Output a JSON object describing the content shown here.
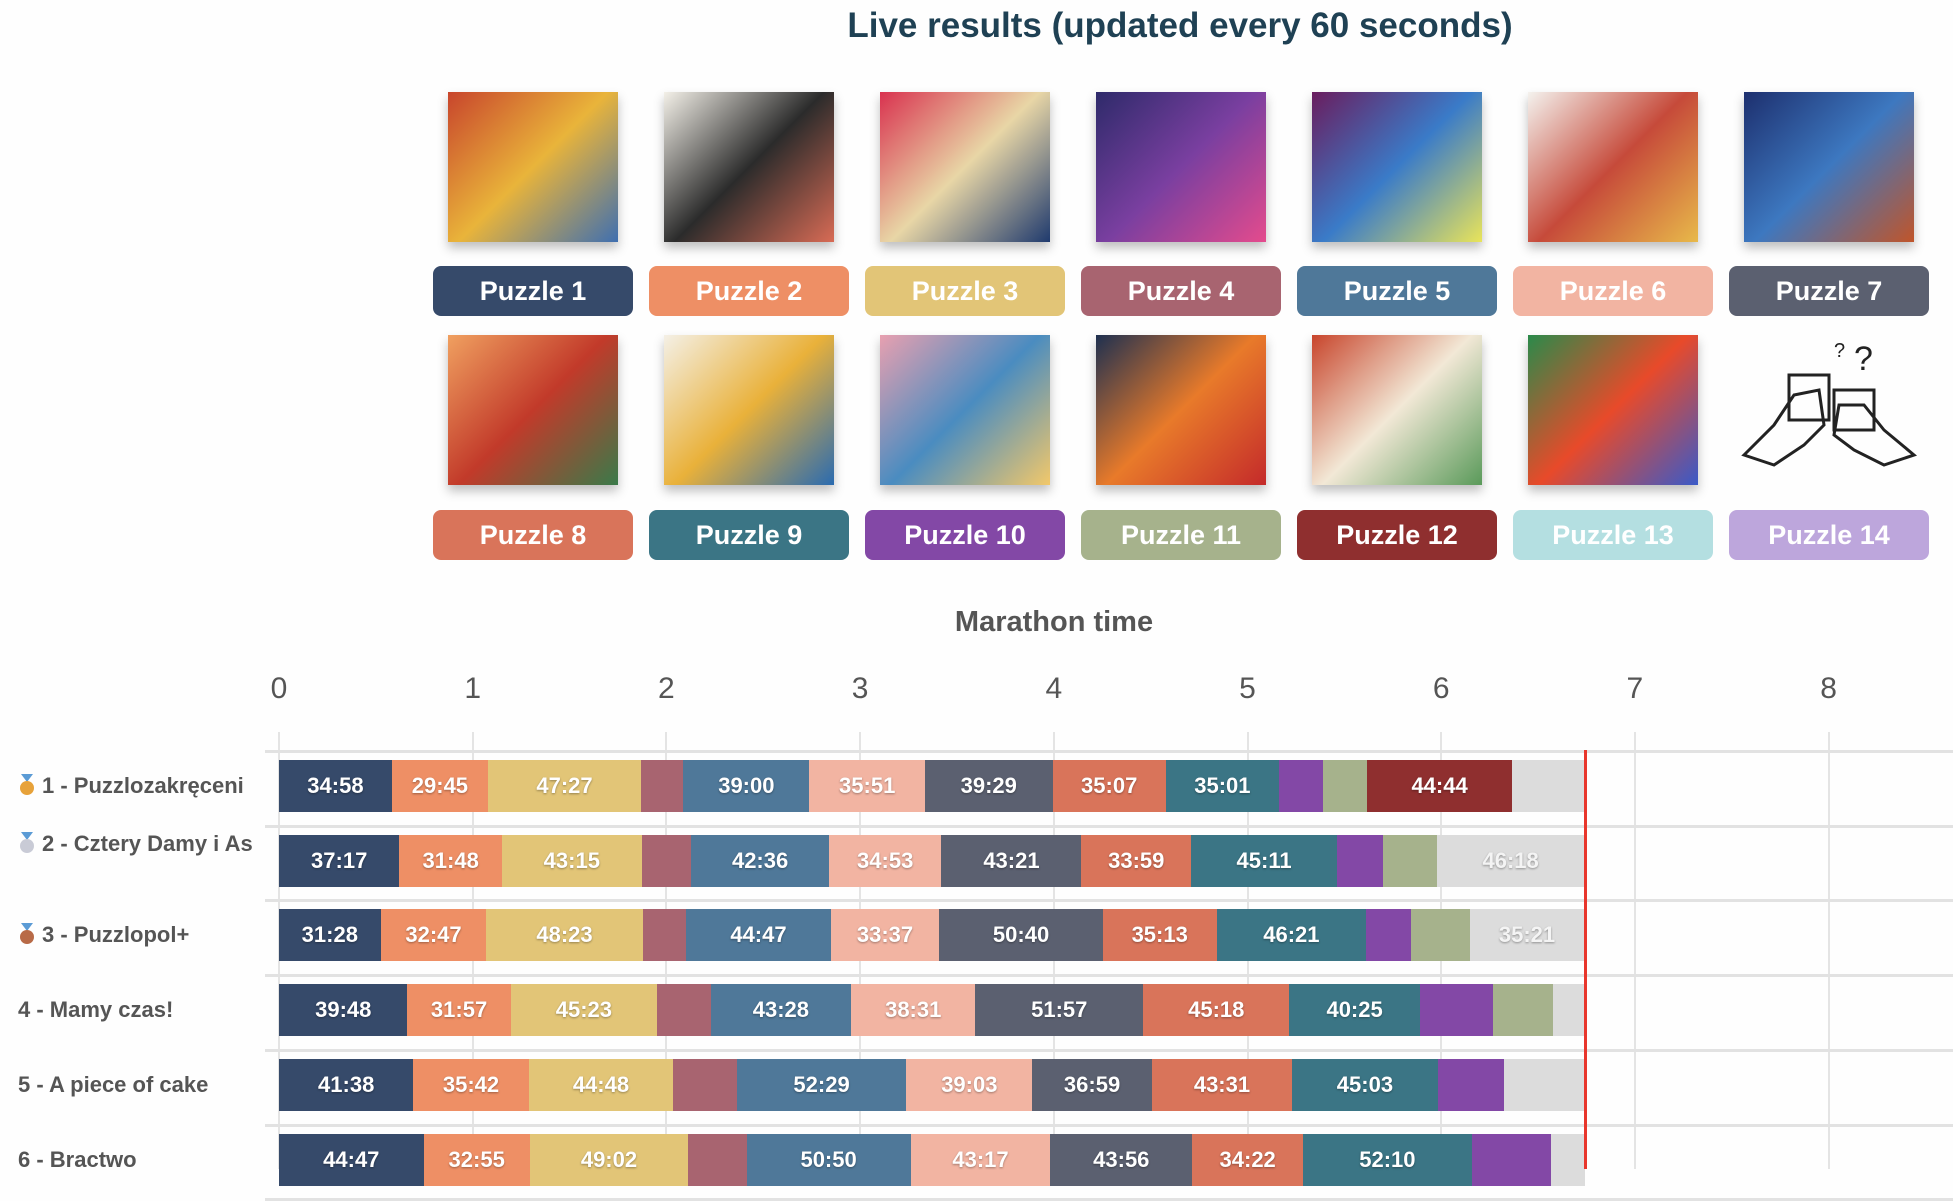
{
  "header": {
    "title": "Live results (updated every 60 seconds)"
  },
  "puzzles": [
    {
      "label": "Puzzle 1",
      "color": "#364a6a",
      "art": [
        "#c8452c",
        "#e9b43a",
        "#3f6fb0"
      ]
    },
    {
      "label": "Puzzle 2",
      "color": "#ee8f65",
      "art": [
        "#f3f0e8",
        "#2b2b2b",
        "#d86b55"
      ]
    },
    {
      "label": "Puzzle 3",
      "color": "#e2c577",
      "art": [
        "#d9324f",
        "#e8d6a6",
        "#1f3a6e"
      ]
    },
    {
      "label": "Puzzle 4",
      "color": "#a86470",
      "art": [
        "#2e2a6a",
        "#7a3fa0",
        "#e44b8d"
      ]
    },
    {
      "label": "Puzzle 5",
      "color": "#4f7899",
      "art": [
        "#6a1d5e",
        "#3a7bc8",
        "#e9e45a"
      ]
    },
    {
      "label": "Puzzle 6",
      "color": "#f2b4a2",
      "art": [
        "#f4f2ee",
        "#c64a3a",
        "#e8b94a"
      ]
    },
    {
      "label": "Puzzle 7",
      "color": "#5b6070",
      "art": [
        "#1d2f6e",
        "#3d78c0",
        "#c0552a"
      ]
    },
    {
      "label": "Puzzle 8",
      "color": "#d9745a",
      "art": [
        "#f0a060",
        "#c23a2a",
        "#3a7a4a"
      ]
    },
    {
      "label": "Puzzle 9",
      "color": "#3b7585",
      "art": [
        "#f4f0e6",
        "#e9b13a",
        "#2a6bb0"
      ]
    },
    {
      "label": "Puzzle 10",
      "color": "#8348a6",
      "art": [
        "#e8a0b0",
        "#4a8cc0",
        "#f2c86a"
      ]
    },
    {
      "label": "Puzzle 11",
      "color": "#a6b28c",
      "art": [
        "#1e3050",
        "#e87a2a",
        "#c42a2a"
      ]
    },
    {
      "label": "Puzzle 12",
      "color": "#8f2f2f",
      "art": [
        "#c8452c",
        "#f2e8d6",
        "#5a9a5a"
      ]
    },
    {
      "label": "Puzzle 13",
      "color": "#b4dfe1",
      "art": [
        "#2a8a4a",
        "#e84a2a",
        "#3a5ac8"
      ]
    },
    {
      "label": "Puzzle 14",
      "color": "#bda6dc",
      "art": []
    }
  ],
  "chart_data": {
    "type": "bar",
    "orientation": "horizontal-stacked",
    "title": "Marathon time",
    "xlabel": "Marathon time",
    "unit": "hours",
    "xlim": [
      0,
      8
    ],
    "xticks": [
      "0",
      "1",
      "2",
      "3",
      "4",
      "5",
      "6",
      "7",
      "8"
    ],
    "now_hours": 6.74,
    "in_progress_color": "#dcdcdc",
    "now_line_color": "#e8362c",
    "rows": [
      {
        "name": "1 - Puzzlozakręceni",
        "medal": "gold",
        "segments": [
          {
            "puzzle": 1,
            "label": "34:58",
            "minutes": 34.97
          },
          {
            "puzzle": 2,
            "label": "29:45",
            "minutes": 29.75
          },
          {
            "puzzle": 3,
            "label": "47:27",
            "minutes": 47.45
          },
          {
            "puzzle": 4,
            "label": "",
            "minutes": 13.1
          },
          {
            "puzzle": 5,
            "label": "39:00",
            "minutes": 39.0
          },
          {
            "puzzle": 6,
            "label": "35:51",
            "minutes": 35.85
          },
          {
            "puzzle": 7,
            "label": "39:29",
            "minutes": 39.48
          },
          {
            "puzzle": 8,
            "label": "35:07",
            "minutes": 35.12
          },
          {
            "puzzle": 9,
            "label": "35:01",
            "minutes": 35.02
          },
          {
            "puzzle": 10,
            "label": "",
            "minutes": 13.5
          },
          {
            "puzzle": 11,
            "label": "",
            "minutes": 13.9
          },
          {
            "puzzle": 12,
            "label": "44:44",
            "minutes": 44.73
          },
          {
            "puzzle": 13,
            "label": "",
            "status": "in-progress"
          }
        ]
      },
      {
        "name": "2 - Cztery Damy i As",
        "medal": "silver",
        "segments": [
          {
            "puzzle": 1,
            "label": "37:17",
            "minutes": 37.28
          },
          {
            "puzzle": 2,
            "label": "31:48",
            "minutes": 31.8
          },
          {
            "puzzle": 3,
            "label": "43:15",
            "minutes": 43.25
          },
          {
            "puzzle": 4,
            "label": "",
            "minutes": 15.4
          },
          {
            "puzzle": 5,
            "label": "42:36",
            "minutes": 42.6
          },
          {
            "puzzle": 6,
            "label": "34:53",
            "minutes": 34.88
          },
          {
            "puzzle": 7,
            "label": "43:21",
            "minutes": 43.35
          },
          {
            "puzzle": 8,
            "label": "33:59",
            "minutes": 33.98
          },
          {
            "puzzle": 9,
            "label": "45:11",
            "minutes": 45.18
          },
          {
            "puzzle": 10,
            "label": "",
            "minutes": 14.3
          },
          {
            "puzzle": 11,
            "label": "",
            "minutes": 16.6
          },
          {
            "puzzle": 12,
            "label": "46:18",
            "status": "in-progress"
          }
        ]
      },
      {
        "name": "3 - Puzzlopol+",
        "medal": "bronze",
        "segments": [
          {
            "puzzle": 1,
            "label": "31:28",
            "minutes": 31.47
          },
          {
            "puzzle": 2,
            "label": "32:47",
            "minutes": 32.78
          },
          {
            "puzzle": 3,
            "label": "48:23",
            "minutes": 48.38
          },
          {
            "puzzle": 4,
            "label": "",
            "minutes": 13.5
          },
          {
            "puzzle": 5,
            "label": "44:47",
            "minutes": 44.78
          },
          {
            "puzzle": 6,
            "label": "33:37",
            "minutes": 33.62
          },
          {
            "puzzle": 7,
            "label": "50:40",
            "minutes": 50.67
          },
          {
            "puzzle": 8,
            "label": "35:13",
            "minutes": 35.22
          },
          {
            "puzzle": 9,
            "label": "46:21",
            "minutes": 46.35
          },
          {
            "puzzle": 10,
            "label": "",
            "minutes": 13.9
          },
          {
            "puzzle": 11,
            "label": "",
            "minutes": 18.1
          },
          {
            "puzzle": 12,
            "label": "35:21",
            "status": "in-progress"
          }
        ]
      },
      {
        "name": "4 - Mamy czas!",
        "medal": "",
        "segments": [
          {
            "puzzle": 1,
            "label": "39:48",
            "minutes": 39.8
          },
          {
            "puzzle": 2,
            "label": "31:57",
            "minutes": 31.95
          },
          {
            "puzzle": 3,
            "label": "45:23",
            "minutes": 45.38
          },
          {
            "puzzle": 4,
            "label": "",
            "minutes": 16.6
          },
          {
            "puzzle": 5,
            "label": "43:28",
            "minutes": 43.47
          },
          {
            "puzzle": 6,
            "label": "38:31",
            "minutes": 38.52
          },
          {
            "puzzle": 7,
            "label": "51:57",
            "minutes": 51.95
          },
          {
            "puzzle": 8,
            "label": "45:18",
            "minutes": 45.3
          },
          {
            "puzzle": 9,
            "label": "40:25",
            "minutes": 40.42
          },
          {
            "puzzle": 10,
            "label": "",
            "minutes": 22.8
          },
          {
            "puzzle": 11,
            "label": "",
            "minutes": 18.5
          },
          {
            "puzzle": 12,
            "label": "",
            "status": "in-progress"
          }
        ]
      },
      {
        "name": "5 - A piece of cake",
        "medal": "",
        "segments": [
          {
            "puzzle": 1,
            "label": "41:38",
            "minutes": 41.63
          },
          {
            "puzzle": 2,
            "label": "35:42",
            "minutes": 35.7
          },
          {
            "puzzle": 3,
            "label": "44:48",
            "minutes": 44.8
          },
          {
            "puzzle": 4,
            "label": "",
            "minutes": 19.7
          },
          {
            "puzzle": 5,
            "label": "52:29",
            "minutes": 52.48
          },
          {
            "puzzle": 6,
            "label": "39:03",
            "minutes": 39.05
          },
          {
            "puzzle": 7,
            "label": "36:59",
            "minutes": 36.98
          },
          {
            "puzzle": 8,
            "label": "43:31",
            "minutes": 43.52
          },
          {
            "puzzle": 9,
            "label": "45:03",
            "minutes": 45.05
          },
          {
            "puzzle": 10,
            "label": "",
            "minutes": 20.4
          },
          {
            "puzzle": 11,
            "label": "",
            "status": "in-progress"
          }
        ]
      },
      {
        "name": "6 - Bractwo",
        "medal": "",
        "segments": [
          {
            "puzzle": 1,
            "label": "44:47",
            "minutes": 44.78
          },
          {
            "puzzle": 2,
            "label": "32:55",
            "minutes": 32.92
          },
          {
            "puzzle": 3,
            "label": "49:02",
            "minutes": 49.03
          },
          {
            "puzzle": 4,
            "label": "",
            "minutes": 18.1
          },
          {
            "puzzle": 5,
            "label": "50:50",
            "minutes": 50.83
          },
          {
            "puzzle": 6,
            "label": "43:17",
            "minutes": 43.28
          },
          {
            "puzzle": 7,
            "label": "43:56",
            "minutes": 43.93
          },
          {
            "puzzle": 8,
            "label": "34:22",
            "minutes": 34.37
          },
          {
            "puzzle": 9,
            "label": "52:10",
            "minutes": 52.17
          },
          {
            "puzzle": 10,
            "label": "",
            "minutes": 24.7
          },
          {
            "puzzle": 11,
            "label": "",
            "status": "in-progress"
          }
        ]
      }
    ]
  }
}
